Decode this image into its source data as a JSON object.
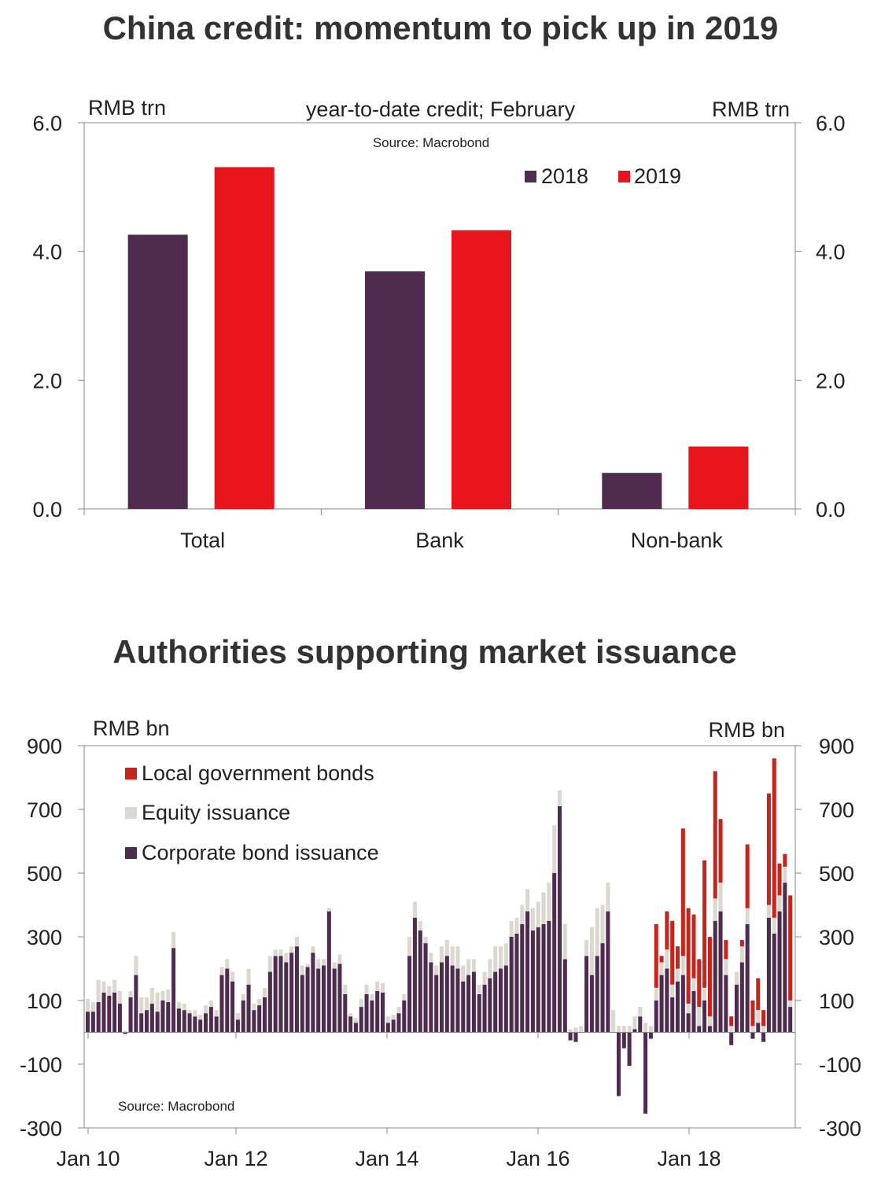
{
  "titles": {
    "top": "China credit: momentum to pick up in 2019",
    "bottom": "Authorities supporting market issuance"
  },
  "chart_data": [
    {
      "type": "bar",
      "title": "China credit: momentum to pick up in 2019",
      "subtitle": "year-to-date credit; February",
      "ylabel_left": "RMB trn",
      "ylabel_right": "RMB trn",
      "source": "Source: Macrobond",
      "categories": [
        "Total",
        "Bank",
        "Non-bank"
      ],
      "series": [
        {
          "name": "2018",
          "color": "#4e2b4f",
          "values": [
            4.26,
            3.69,
            0.56
          ]
        },
        {
          "name": "2019",
          "color": "#e8141b",
          "values": [
            5.31,
            4.33,
            0.97
          ]
        }
      ],
      "ylim": [
        0,
        6
      ],
      "yticks": [
        "0.0",
        "2.0",
        "4.0",
        "6.0"
      ],
      "legend_position": "top-right"
    },
    {
      "type": "bar",
      "stacked": true,
      "title": "Authorities supporting market issuance",
      "ylabel_left": "RMB bn",
      "ylabel_right": "RMB bn",
      "source": "Source: Macrobond",
      "x_start": "Jan 10",
      "frequency": "monthly",
      "xticks": [
        "Jan 10",
        "Jan 12",
        "Jan 14",
        "Jan 16",
        "Jan 18"
      ],
      "yticks": [
        "-300",
        "-100",
        "100",
        "300",
        "500",
        "700",
        "900"
      ],
      "ylim": [
        -300,
        900
      ],
      "legend_position": "top-left",
      "series": [
        {
          "name": "Corporate bond issuance",
          "color": "#4e2b4f",
          "values": [
            65,
            65,
            95,
            125,
            115,
            125,
            90,
            -5,
            110,
            180,
            60,
            70,
            90,
            65,
            100,
            95,
            265,
            75,
            70,
            60,
            50,
            40,
            60,
            80,
            50,
            180,
            200,
            160,
            40,
            100,
            150,
            70,
            85,
            110,
            190,
            240,
            240,
            220,
            250,
            270,
            180,
            205,
            250,
            200,
            210,
            380,
            200,
            215,
            120,
            50,
            30,
            80,
            120,
            100,
            130,
            125,
            30,
            40,
            60,
            100,
            240,
            360,
            320,
            280,
            220,
            180,
            220,
            240,
            210,
            200,
            160,
            180,
            190,
            120,
            150,
            170,
            190,
            200,
            210,
            300,
            310,
            340,
            380,
            320,
            330,
            340,
            350,
            500,
            710,
            230,
            -25,
            -30,
            0,
            240,
            180,
            240,
            280,
            380,
            0,
            -200,
            -50,
            -105,
            10,
            50,
            -255,
            -20,
            100,
            180,
            200,
            110,
            160,
            180,
            60,
            130,
            20,
            100,
            20,
            350,
            380,
            180,
            -40,
            150,
            220,
            340,
            -20,
            30,
            -30,
            360,
            310,
            380,
            470,
            80
          ],
          "note": "monthly values, Jan 2010 onwards"
        },
        {
          "name": "Equity issuance",
          "color": "#dcd8d0",
          "values": [
            40,
            30,
            70,
            35,
            30,
            40,
            40,
            5,
            20,
            60,
            50,
            40,
            50,
            60,
            30,
            40,
            50,
            20,
            20,
            10,
            20,
            15,
            25,
            20,
            20,
            25,
            30,
            30,
            20,
            20,
            50,
            20,
            20,
            30,
            50,
            20,
            20,
            30,
            20,
            30,
            30,
            10,
            20,
            30,
            20,
            10,
            20,
            30,
            30,
            10,
            15,
            25,
            30,
            20,
            30,
            30,
            20,
            15,
            20,
            20,
            60,
            50,
            30,
            20,
            30,
            30,
            50,
            50,
            60,
            70,
            50,
            50,
            40,
            30,
            40,
            60,
            80,
            70,
            70,
            50,
            50,
            60,
            70,
            70,
            80,
            100,
            120,
            150,
            50,
            110,
            10,
            15,
            20,
            50,
            150,
            150,
            120,
            90,
            70,
            20,
            20,
            20,
            40,
            30,
            30,
            20,
            40,
            40,
            60,
            40,
            40,
            60,
            30,
            40,
            60,
            40,
            30,
            70,
            90,
            50,
            20,
            40,
            50,
            50,
            20,
            40,
            20,
            40,
            50,
            50,
            50,
            20
          ],
          "note": "monthly values stacked above corporate bonds"
        },
        {
          "name": "Local government bonds",
          "color": "#c4251c",
          "values": [
            0,
            0,
            0,
            0,
            0,
            0,
            0,
            0,
            0,
            0,
            0,
            0,
            0,
            0,
            0,
            0,
            0,
            0,
            0,
            0,
            0,
            0,
            0,
            0,
            0,
            0,
            0,
            0,
            0,
            0,
            0,
            0,
            0,
            0,
            0,
            0,
            0,
            0,
            0,
            0,
            0,
            0,
            0,
            0,
            0,
            0,
            0,
            0,
            0,
            0,
            0,
            0,
            0,
            0,
            0,
            0,
            0,
            0,
            0,
            0,
            0,
            0,
            0,
            0,
            0,
            0,
            0,
            0,
            0,
            0,
            0,
            0,
            0,
            0,
            0,
            0,
            0,
            0,
            0,
            0,
            0,
            0,
            0,
            0,
            0,
            0,
            0,
            0,
            0,
            0,
            0,
            0,
            0,
            0,
            0,
            0,
            0,
            0,
            0,
            0,
            0,
            0,
            0,
            0,
            0,
            0,
            0,
            0,
            0,
            0,
            0,
            0,
            0,
            0,
            0,
            0,
            0,
            0,
            0,
            0,
            0,
            0,
            0,
            0,
            0,
            0,
            0,
            0,
            0,
            0,
            0,
            0
          ],
          "note": "from 2017: see lgb_tail"
        }
      ],
      "lgb_tail": {
        "start_index": 89,
        "values": [
          0,
          0,
          0,
          0,
          0,
          0,
          0,
          0,
          0,
          0,
          0,
          0,
          0,
          0,
          0,
          0,
          0,
          200,
          20,
          120,
          200,
          70,
          400,
          300,
          200,
          150,
          400,
          250,
          400,
          200,
          60,
          30,
          0,
          20,
          200,
          80,
          100,
          50,
          350,
          500,
          100,
          40,
          330,
          300,
          80,
          100,
          130,
          0
        ]
      }
    }
  ]
}
